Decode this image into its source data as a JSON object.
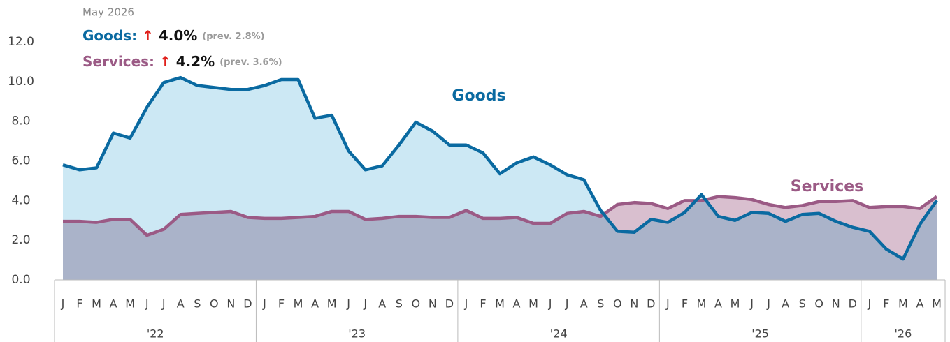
{
  "chart_data": {
    "type": "line",
    "categories": [
      "J",
      "F",
      "M",
      "A",
      "M",
      "J",
      "J",
      "A",
      "S",
      "O",
      "N",
      "D",
      "J",
      "F",
      "M",
      "A",
      "M",
      "J",
      "J",
      "A",
      "S",
      "O",
      "N",
      "D",
      "J",
      "F",
      "M",
      "A",
      "M",
      "J",
      "J",
      "A",
      "S",
      "O",
      "N",
      "D",
      "J",
      "F",
      "M",
      "A",
      "M",
      "J",
      "J",
      "A",
      "S",
      "O",
      "N",
      "D",
      "J",
      "F",
      "M",
      "A",
      "M"
    ],
    "year_labels": [
      "'22",
      "'23",
      "'24",
      "'25",
      "'26"
    ],
    "series": [
      {
        "name": "Goods",
        "color": "#0a6aa1",
        "fill": "#cce8f4",
        "values": [
          5.8,
          5.55,
          5.65,
          7.4,
          7.15,
          8.7,
          9.95,
          10.2,
          9.8,
          9.7,
          9.6,
          9.6,
          9.8,
          10.1,
          10.1,
          8.15,
          8.3,
          6.5,
          5.55,
          5.75,
          6.8,
          7.95,
          7.5,
          6.8,
          6.8,
          6.4,
          5.35,
          5.9,
          6.2,
          5.8,
          5.3,
          5.05,
          3.5,
          2.45,
          2.4,
          3.05,
          2.9,
          3.4,
          4.3,
          3.2,
          3.0,
          3.4,
          3.35,
          2.95,
          3.3,
          3.35,
          2.95,
          2.65,
          2.45,
          1.55,
          1.05,
          2.8,
          4.0
        ]
      },
      {
        "name": "Services",
        "color": "#9b5a85",
        "fill": "#d9bfcf",
        "values": [
          2.95,
          2.95,
          2.9,
          3.05,
          3.05,
          2.25,
          2.55,
          3.3,
          3.35,
          3.4,
          3.45,
          3.15,
          3.1,
          3.1,
          3.15,
          3.2,
          3.45,
          3.45,
          3.05,
          3.1,
          3.2,
          3.2,
          3.15,
          3.15,
          3.5,
          3.1,
          3.1,
          3.15,
          2.85,
          2.85,
          3.35,
          3.45,
          3.2,
          3.8,
          3.9,
          3.85,
          3.6,
          4.0,
          4.0,
          4.2,
          4.15,
          4.05,
          3.8,
          3.65,
          3.75,
          3.95,
          3.95,
          4.0,
          3.65,
          3.7,
          3.7,
          3.6,
          4.2
        ]
      }
    ],
    "overlap_color": "#aab3c9",
    "ylim": [
      0,
      12
    ],
    "yticks": [
      {
        "value": 0,
        "label": "0.0"
      },
      {
        "value": 2,
        "label": "2.0"
      },
      {
        "value": 4,
        "label": "4.0"
      },
      {
        "value": 6,
        "label": "6.0"
      },
      {
        "value": 8,
        "label": "8.0"
      },
      {
        "value": 10,
        "label": "10.0"
      },
      {
        "value": 12,
        "label": "12.0"
      }
    ],
    "annotations": {
      "date": "May 2026",
      "goods": {
        "name": "Goods:",
        "arrow": "↑",
        "value": "4.0%",
        "prev": "(prev. 2.8%)"
      },
      "services": {
        "name": "Services:",
        "arrow": "↑",
        "value": "4.2%",
        "prev": "(prev. 3.6%)"
      }
    }
  }
}
